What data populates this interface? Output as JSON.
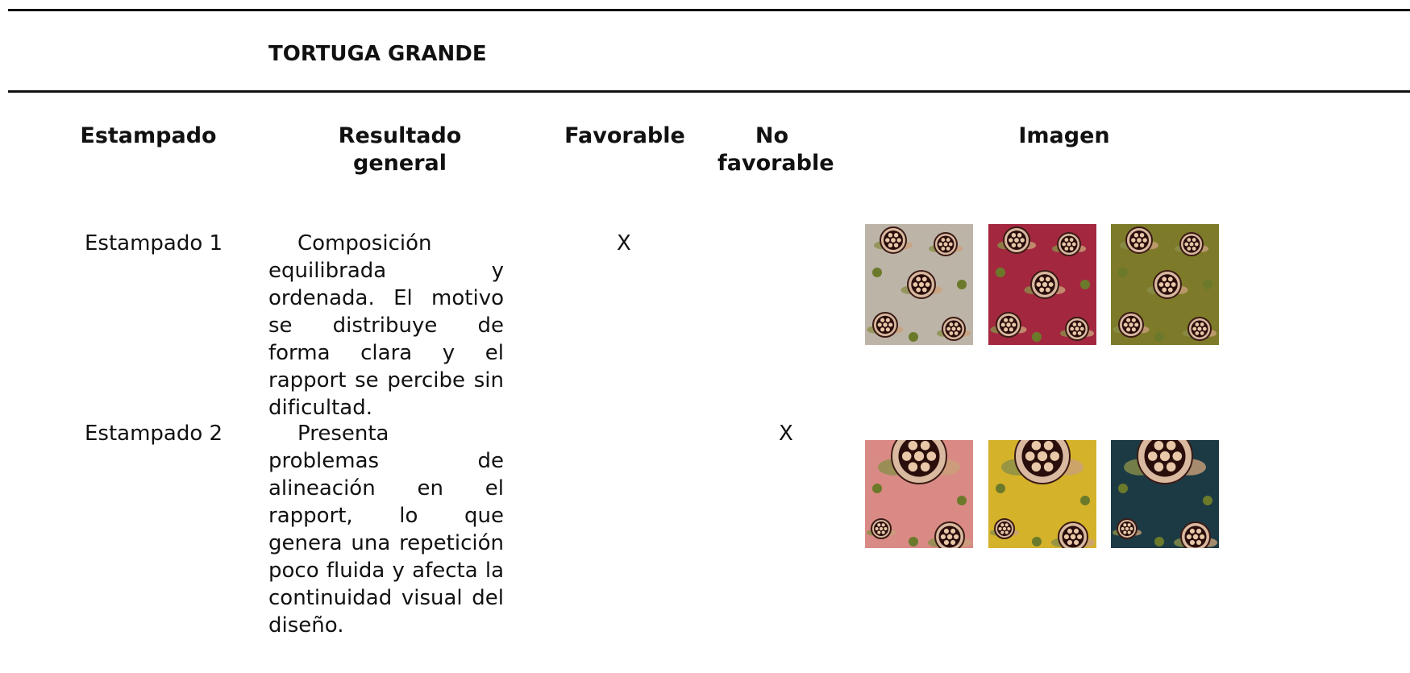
{
  "header": {
    "title": "TORTUGA GRANDE"
  },
  "table": {
    "columns": [
      "Estampado",
      "Resultado general",
      "Favorable",
      "No favorable",
      "Imagen"
    ],
    "rows": [
      {
        "name": "Estampado 1",
        "result": "Composición equilibrada y ordenada. El motivo se distribuye de forma clara y el rapport se percibe sin dificultad.",
        "favorable": "X"
      },
      {
        "name": "Estampado 2",
        "result": "Presenta problemas de alineación en el rapport, lo que genera una repetición poco fluida y afecta la continuidad visual del diseño.",
        "no_favorable": "X"
      }
    ]
  }
}
